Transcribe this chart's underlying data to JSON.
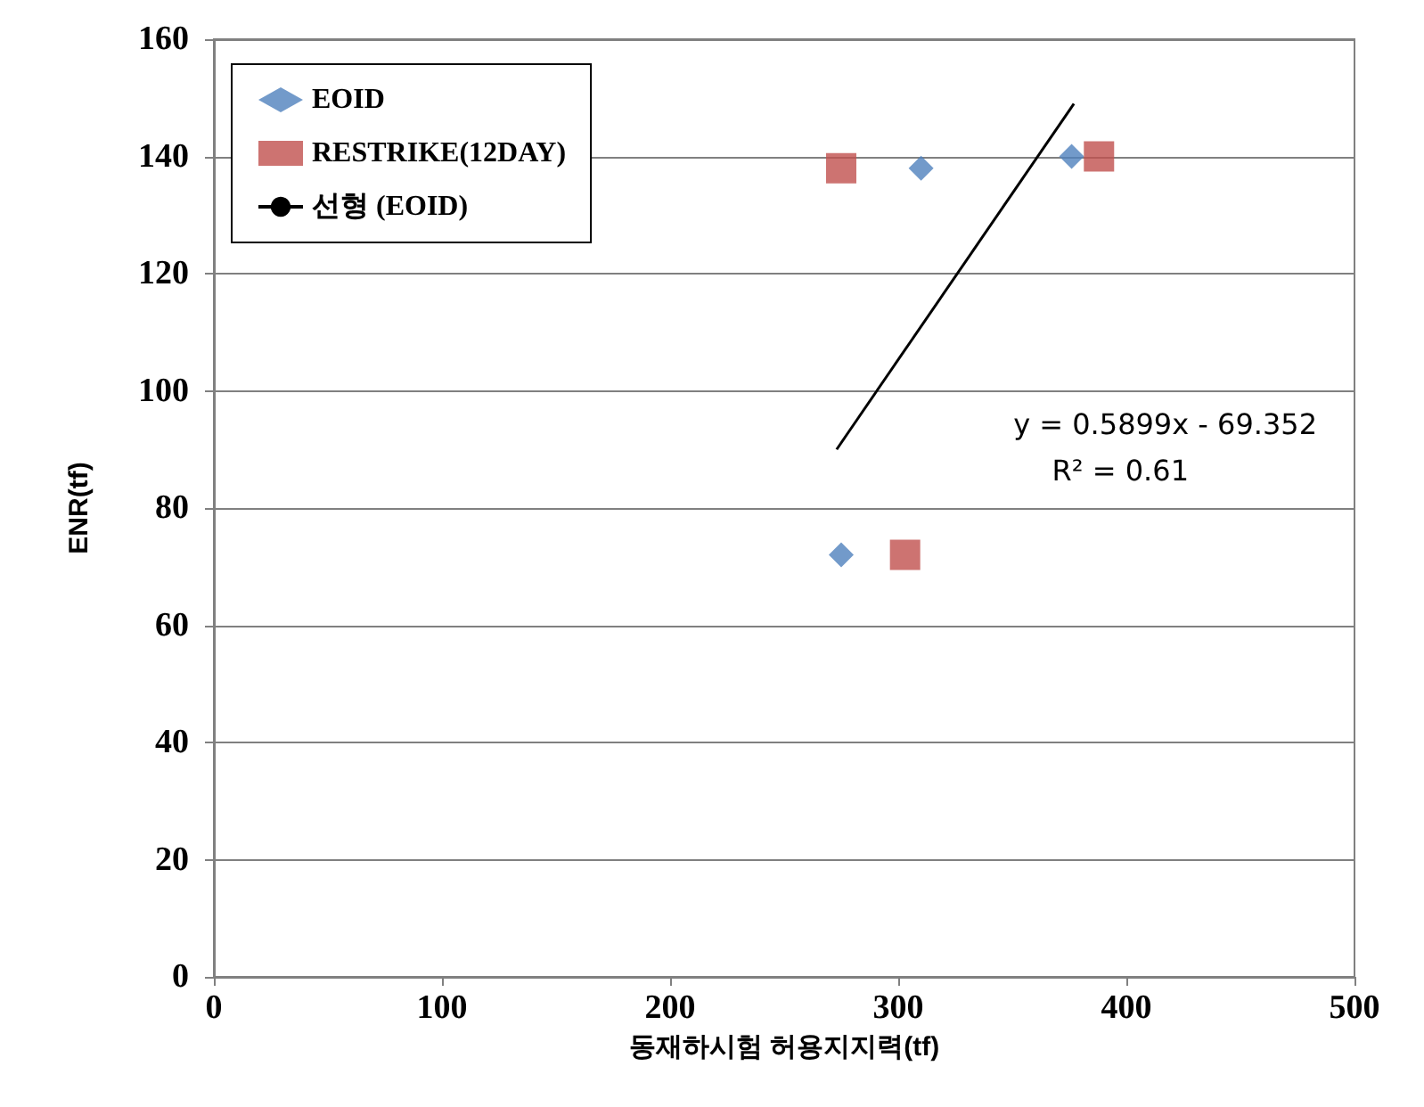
{
  "chart_data": {
    "type": "scatter",
    "xlabel": "동재하시험 허용지지력(tf)",
    "ylabel": "ENR(tf)",
    "xlim": [
      0,
      500
    ],
    "xticks": [
      0,
      100,
      200,
      300,
      400,
      500
    ],
    "ylim": [
      0,
      160
    ],
    "yticks": [
      0,
      20,
      40,
      60,
      80,
      100,
      120,
      140,
      160
    ],
    "grid": "y",
    "legend": "top left",
    "series": [
      {
        "name": "EOID",
        "color": "#4f81bd",
        "marker": "diamond",
        "x": [
          275,
          310,
          376
        ],
        "values": [
          72,
          138,
          140
        ]
      },
      {
        "name": "RESTRIKE(12DAY)",
        "color": "#c0504d",
        "marker": "square",
        "x": [
          275,
          303,
          388
        ],
        "values": [
          138,
          72,
          140
        ]
      },
      {
        "name": "선형 (EOID)",
        "type": "line",
        "color": "#000000",
        "marker": "none",
        "line_style": "solid",
        "x": [
          273,
          377
        ],
        "values": [
          90,
          149
        ]
      }
    ],
    "annotations": [
      "y = 0.5899x - 69.352",
      "R² = 0.61"
    ]
  }
}
